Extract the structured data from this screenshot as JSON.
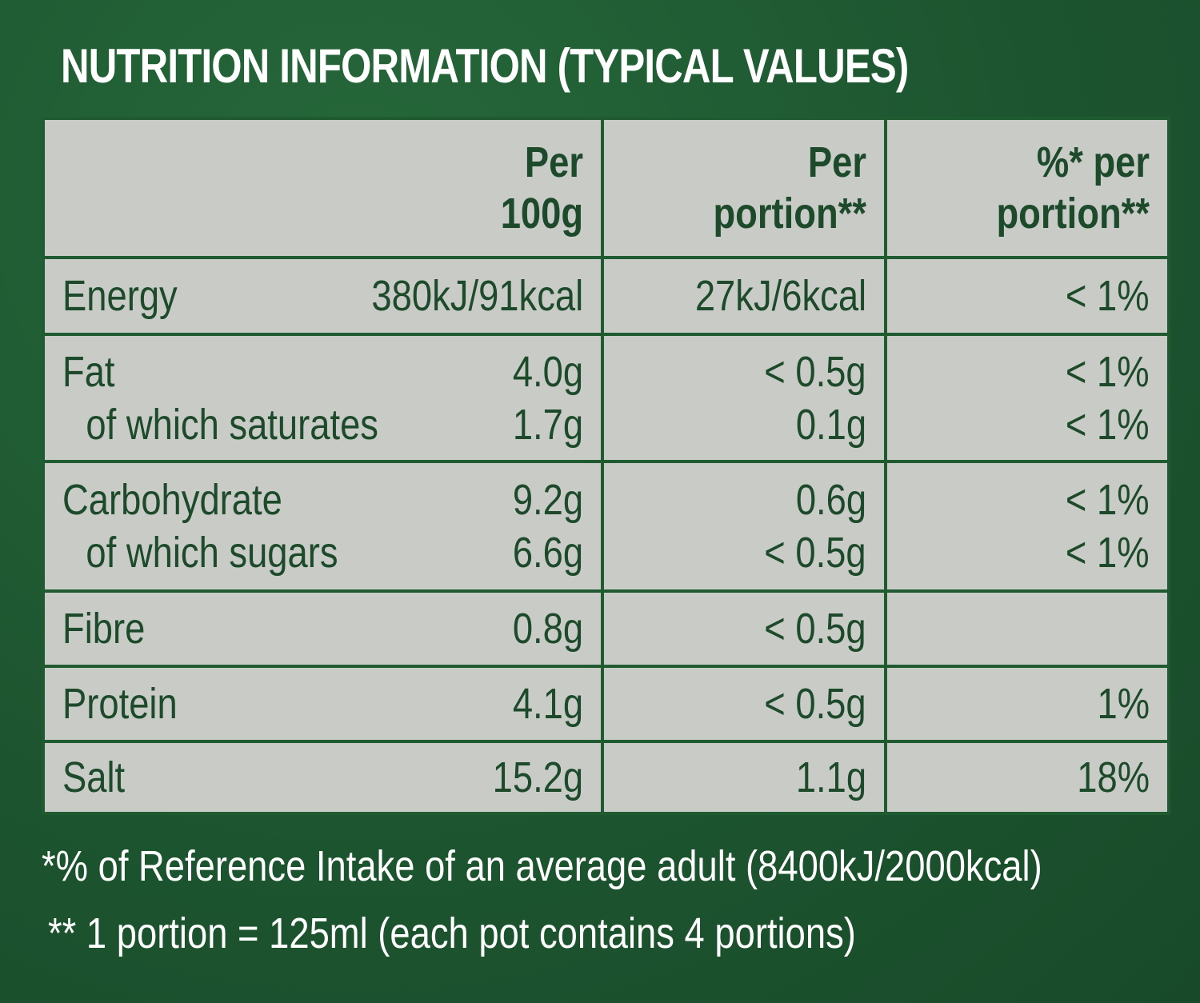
{
  "title": "NUTRITION INFORMATION (TYPICAL VALUES)",
  "headers": {
    "col1_line1": "Per",
    "col1_line2": "100g",
    "col2_line1": "Per",
    "col2_line2": "portion**",
    "col3_line1": "%* per",
    "col3_line2": "portion**"
  },
  "rows": [
    {
      "lines": [
        {
          "label": "Energy",
          "per100": "380kJ/91kcal",
          "portion": "27kJ/6kcal",
          "ri": "< 1%"
        }
      ]
    },
    {
      "lines": [
        {
          "label": "Fat",
          "per100": "4.0g",
          "portion": "< 0.5g",
          "ri": "< 1%"
        },
        {
          "label": "of which saturates",
          "per100": "1.7g",
          "portion": "0.1g",
          "ri": "< 1%"
        }
      ]
    },
    {
      "lines": [
        {
          "label": "Carbohydrate",
          "per100": "9.2g",
          "portion": "0.6g",
          "ri": "< 1%"
        },
        {
          "label": "of which sugars",
          "per100": "6.6g",
          "portion": "< 0.5g",
          "ri": "< 1%"
        }
      ]
    },
    {
      "lines": [
        {
          "label": "Fibre",
          "per100": "0.8g",
          "portion": "< 0.5g",
          "ri": ""
        }
      ]
    },
    {
      "lines": [
        {
          "label": "Protein",
          "per100": "4.1g",
          "portion": "< 0.5g",
          "ri": "1%"
        }
      ]
    },
    {
      "lines": [
        {
          "label": "Salt",
          "per100": "15.2g",
          "portion": "1.1g",
          "ri": "18%"
        }
      ]
    }
  ],
  "footnotes": {
    "ri": "*% of Reference Intake of an average adult (8400kJ/2000kcal)",
    "portion": "** 1 portion = 125ml (each pot contains 4 portions)"
  },
  "colors": {
    "background": "#1f5a31",
    "table_bg": "#c9cbc6",
    "text": "#1d4a2a"
  }
}
